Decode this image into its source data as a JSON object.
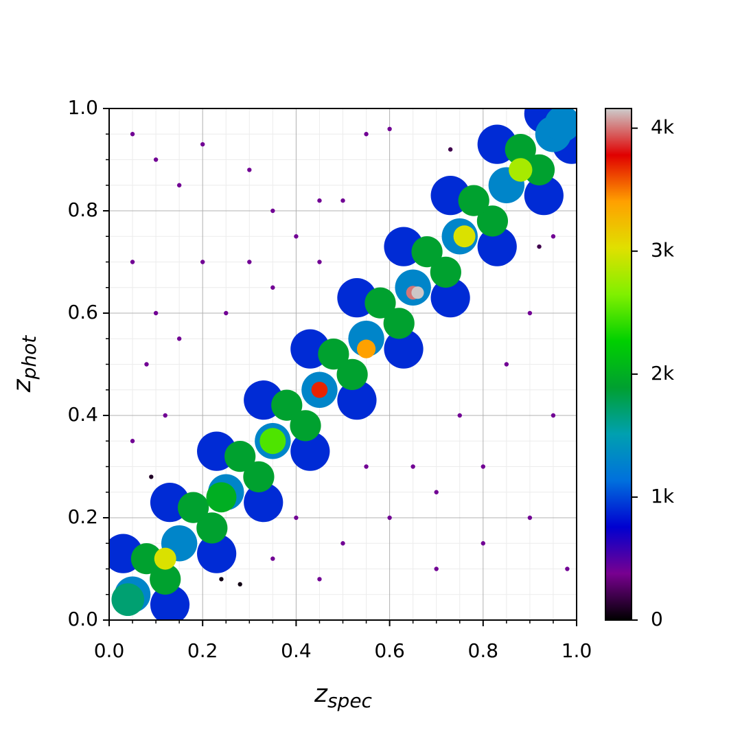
{
  "chart_data": {
    "type": "density_scatter",
    "xlabel": {
      "base": "z",
      "sub": "spec"
    },
    "ylabel": {
      "base": "z",
      "sub": "phot"
    },
    "xlim": [
      0,
      1
    ],
    "ylim": [
      0,
      1
    ],
    "xticks": [
      {
        "value": 0,
        "label": "0.0"
      },
      0.2,
      0.4,
      0.6,
      0.8,
      {
        "value": 1,
        "label": "1.0"
      }
    ],
    "yticks": [
      {
        "value": 0,
        "label": "0.0"
      },
      0.2,
      0.4,
      0.6,
      0.8,
      {
        "value": 1,
        "label": "1.0"
      }
    ],
    "xminorticks": [
      0.05,
      0.1,
      0.15,
      0.25,
      0.3,
      0.35,
      0.45,
      0.5,
      0.55,
      0.65,
      0.7,
      0.75,
      0.85,
      0.9,
      0.95
    ],
    "yminorticks": [
      0.05,
      0.1,
      0.15,
      0.25,
      0.3,
      0.35,
      0.45,
      0.5,
      0.55,
      0.65,
      0.7,
      0.75,
      0.85,
      0.9,
      0.95
    ],
    "grid": true,
    "minor_grid": true,
    "clim": [
      0,
      4160
    ],
    "cticks": [
      0,
      {
        "value": 1000,
        "label": "1k"
      },
      {
        "value": 2000,
        "label": "2k"
      },
      {
        "value": 3000,
        "label": "3k"
      },
      {
        "value": 4000,
        "label": "4k"
      }
    ],
    "colormap": [
      "#000000",
      "#780090",
      "#0000d0",
      "#0070dd",
      "#00a0b0",
      "#00a030",
      "#00d000",
      "#80f000",
      "#e0e000",
      "#ffa000",
      "#e00000",
      "#cccccc"
    ],
    "x": [
      0.05,
      0.1,
      0.15,
      0.2,
      0.3,
      0.35,
      0.45,
      0.55,
      0.6,
      0.05,
      0.1,
      0.2,
      0.3,
      0.4,
      0.5,
      0.08,
      0.15,
      0.25,
      0.35,
      0.45,
      0.05,
      0.12,
      0.6,
      0.7,
      0.8,
      0.9,
      0.95,
      0.85,
      0.75,
      0.65,
      0.5,
      0.4,
      0.55,
      0.9,
      0.95,
      0.8,
      0.7,
      0.35,
      0.45,
      0.98,
      0.09,
      0.24,
      0.28,
      0.92,
      0.73,
      0.13,
      0.03,
      0.23,
      0.13,
      0.33,
      0.23,
      0.43,
      0.33,
      0.53,
      0.43,
      0.63,
      0.53,
      0.73,
      0.63,
      0.83,
      0.73,
      0.93,
      0.83,
      0.99,
      0.93,
      0.05,
      0.15,
      0.25,
      0.35,
      0.45,
      0.55,
      0.65,
      0.75,
      0.85,
      0.95,
      0.12,
      0.08,
      0.22,
      0.18,
      0.32,
      0.28,
      0.42,
      0.38,
      0.52,
      0.48,
      0.62,
      0.58,
      0.72,
      0.68,
      0.82,
      0.78,
      0.92,
      0.88,
      0.04,
      0.97,
      0.24,
      0.35,
      0.12,
      0.88,
      0.76,
      0.55,
      0.45,
      0.65,
      0.66
    ],
    "values": [
      0.95,
      0.9,
      0.85,
      0.93,
      0.88,
      0.8,
      0.82,
      0.95,
      0.96,
      0.7,
      0.6,
      0.7,
      0.7,
      0.75,
      0.82,
      0.5,
      0.55,
      0.6,
      0.65,
      0.7,
      0.35,
      0.4,
      0.2,
      0.25,
      0.3,
      0.2,
      0.4,
      0.5,
      0.4,
      0.3,
      0.15,
      0.2,
      0.3,
      0.6,
      0.75,
      0.15,
      0.1,
      0.12,
      0.08,
      0.1,
      0.28,
      0.08,
      0.07,
      0.73,
      0.92,
      0.03,
      0.13,
      0.13,
      0.23,
      0.23,
      0.33,
      0.33,
      0.43,
      0.43,
      0.53,
      0.53,
      0.63,
      0.63,
      0.73,
      0.73,
      0.83,
      0.83,
      0.93,
      0.93,
      0.99,
      0.05,
      0.15,
      0.25,
      0.35,
      0.45,
      0.55,
      0.65,
      0.75,
      0.85,
      0.95,
      0.08,
      0.12,
      0.18,
      0.22,
      0.28,
      0.32,
      0.38,
      0.42,
      0.48,
      0.52,
      0.58,
      0.62,
      0.68,
      0.72,
      0.78,
      0.82,
      0.88,
      0.92,
      0.04,
      0.97,
      0.24,
      0.35,
      0.12,
      0.88,
      0.75,
      0.53,
      0.45,
      0.64,
      0.64
    ],
    "density": [
      400,
      400,
      400,
      400,
      400,
      400,
      400,
      400,
      400,
      400,
      400,
      400,
      400,
      400,
      400,
      400,
      400,
      400,
      400,
      400,
      400,
      400,
      400,
      400,
      400,
      400,
      400,
      400,
      400,
      400,
      400,
      400,
      400,
      400,
      400,
      400,
      400,
      400,
      400,
      400,
      100,
      50,
      50,
      200,
      200,
      900,
      900,
      900,
      900,
      900,
      900,
      900,
      900,
      900,
      900,
      900,
      900,
      900,
      900,
      900,
      900,
      900,
      900,
      900,
      900,
      1300,
      1300,
      1300,
      1300,
      1300,
      1300,
      1300,
      1300,
      1300,
      1300,
      1900,
      1900,
      1900,
      1900,
      1900,
      1900,
      1900,
      1900,
      1900,
      1900,
      1900,
      1900,
      1900,
      1900,
      1900,
      1900,
      1900,
      1900,
      1700,
      1300,
      2000,
      2500,
      3000,
      2800,
      3000,
      3400,
      3700,
      4000,
      4150
    ]
  }
}
